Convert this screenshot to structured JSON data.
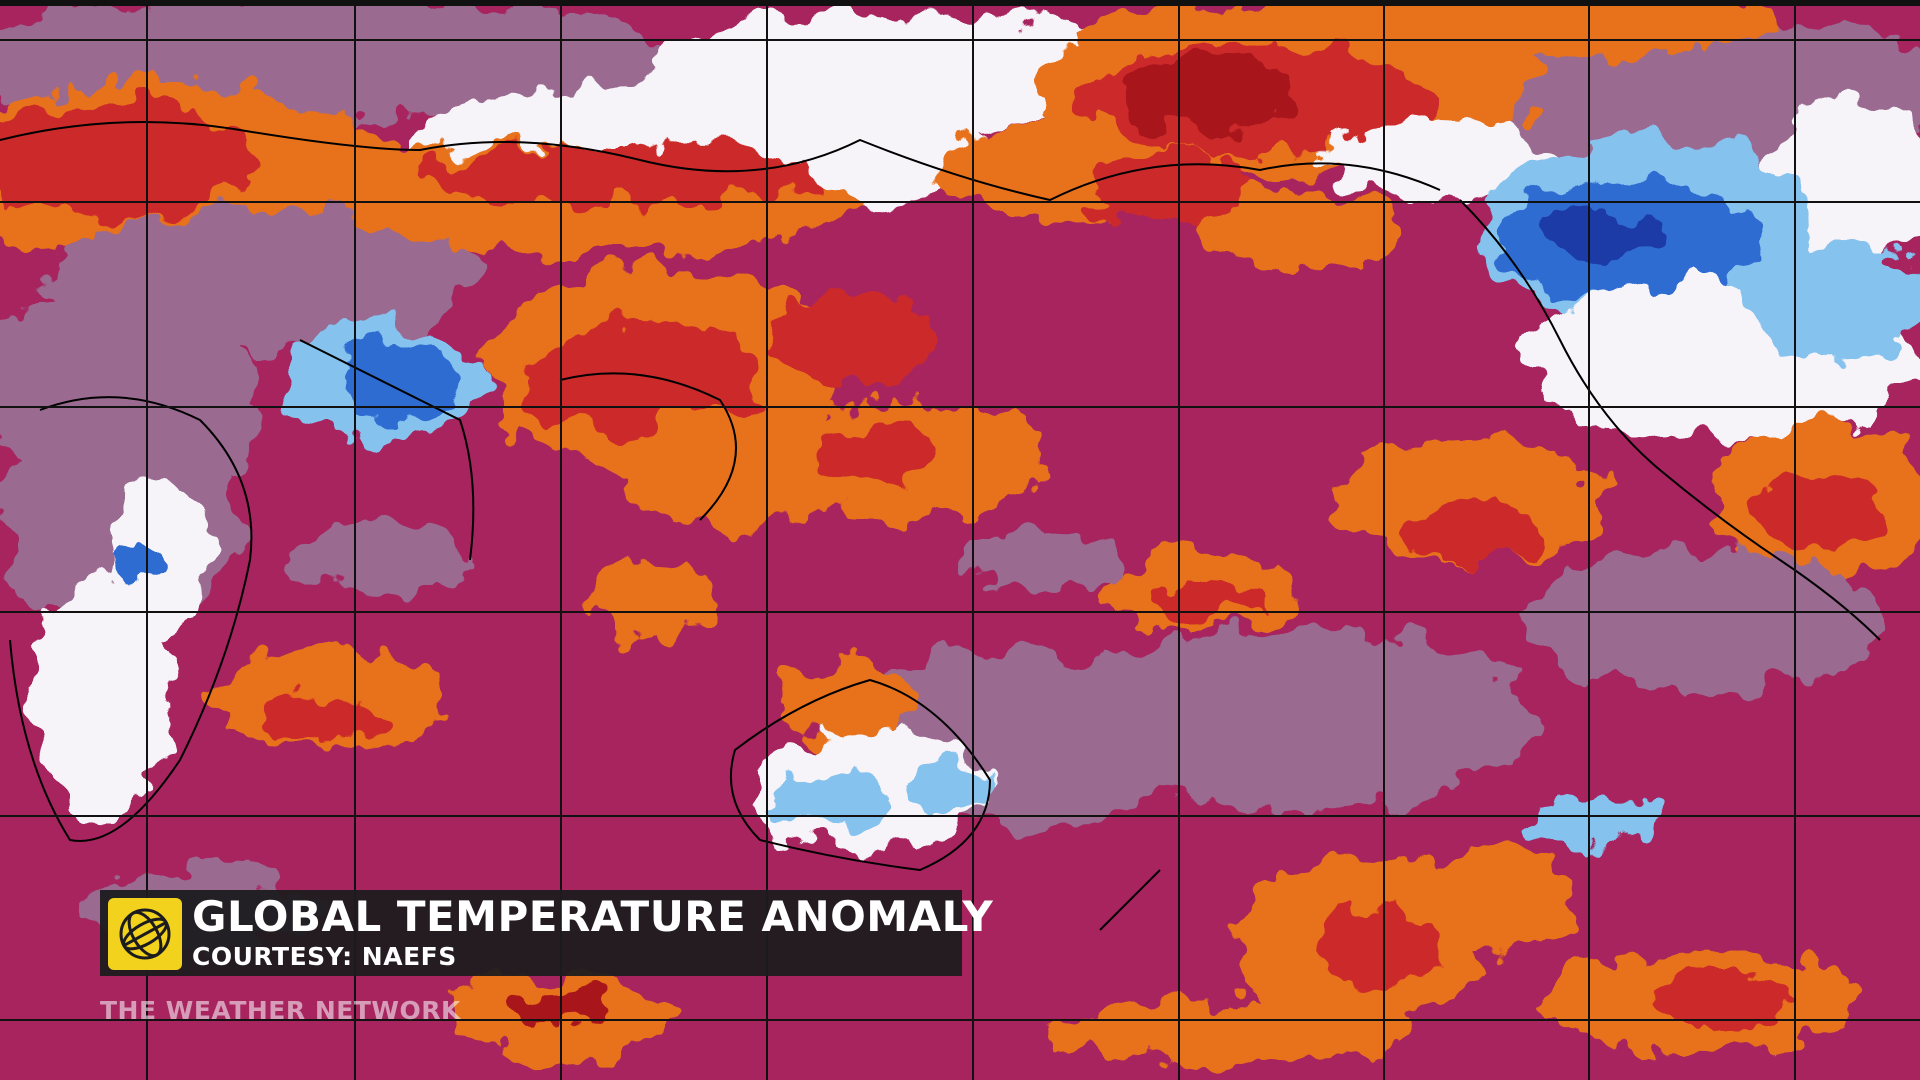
{
  "caption": {
    "title": "GLOBAL TEMPERATURE ANOMALY",
    "credit": "COURTESY: NAEFS"
  },
  "watermark": "THE WEATHER NETWORK"
}
